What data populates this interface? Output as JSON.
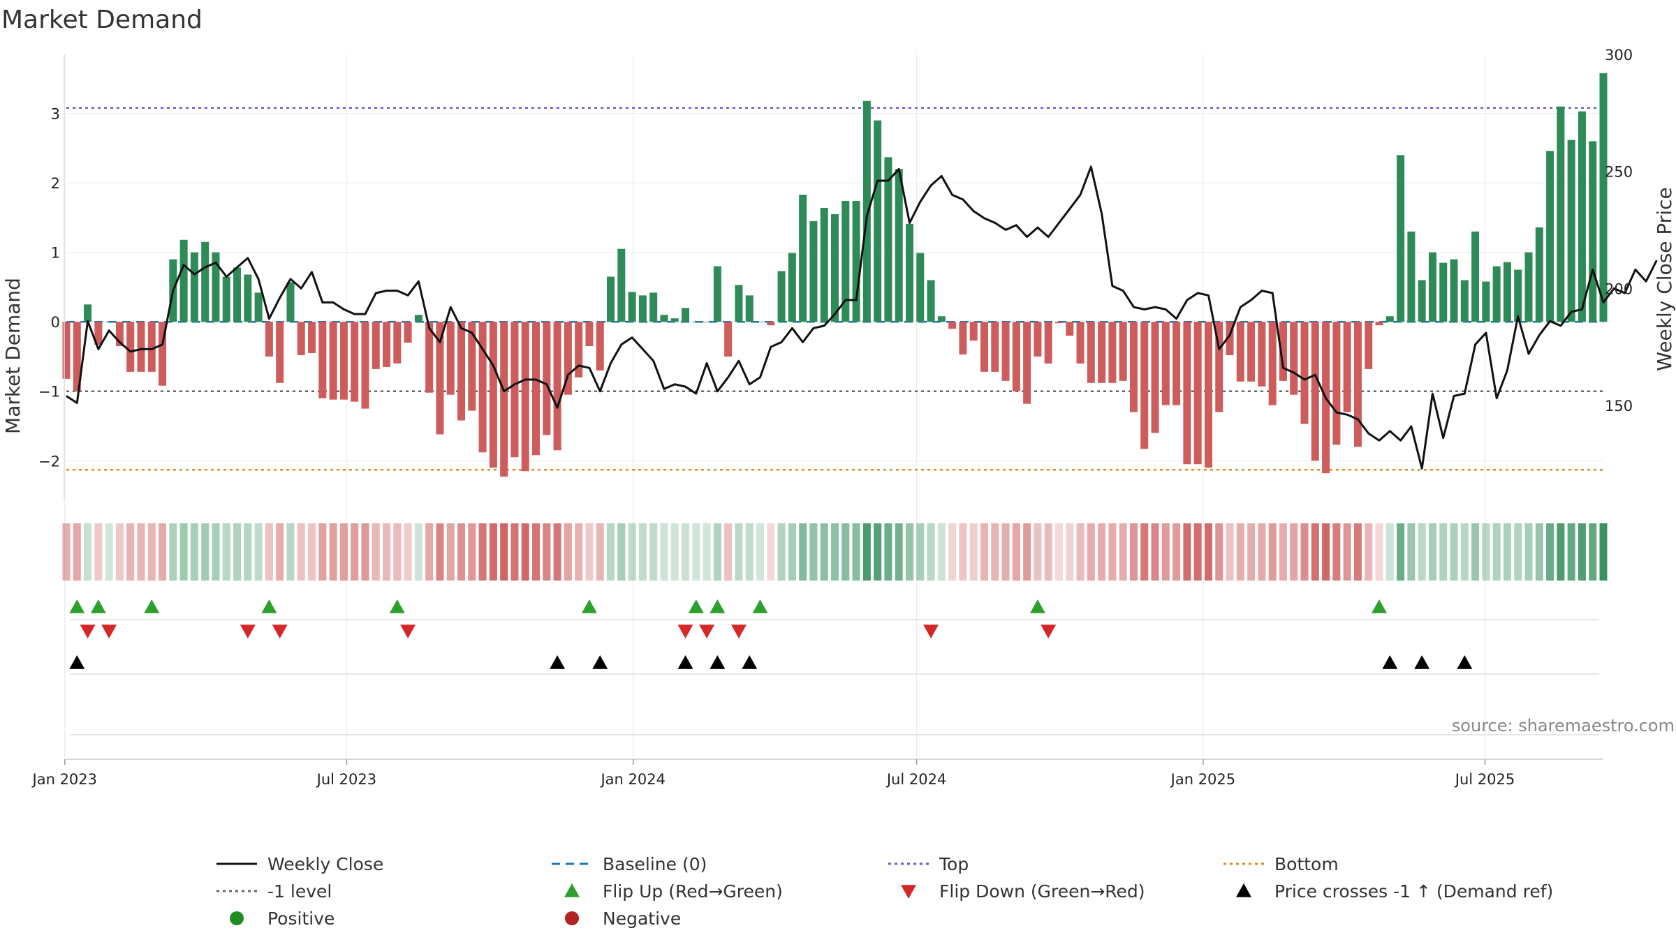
{
  "title": "Market Demand",
  "source": "source: sharemaestro.com",
  "chart_data": {
    "type": "bar",
    "title": "Market Demand",
    "ylabel_left": "Market Demand",
    "ylabel_right": "Weekly Close Price",
    "ylim_left": [
      -2.55,
      3.85
    ],
    "ylim_right": [
      110,
      300
    ],
    "yticks_left": [
      3,
      2,
      1,
      0,
      -1,
      -2
    ],
    "yticks_right": [
      300,
      250,
      200,
      150
    ],
    "x_start": "2023-01-02",
    "x_end": "2025-09-15",
    "x_ticks": [
      {
        "date": "2023-01-01",
        "label": "Jan 2023"
      },
      {
        "date": "2023-07-01",
        "label": "Jul 2023"
      },
      {
        "date": "2024-01-01",
        "label": "Jan 2024"
      },
      {
        "date": "2024-07-01",
        "label": "Jul 2024"
      },
      {
        "date": "2025-01-01",
        "label": "Jan 2025"
      },
      {
        "date": "2025-07-01",
        "label": "Jul 2025"
      }
    ],
    "reference_lines": {
      "top": 3.08,
      "minus_one": -1.0,
      "bottom": -2.13,
      "baseline": 0
    },
    "demand": [
      -0.82,
      -1.0,
      0.25,
      -0.33,
      0.0,
      -0.35,
      -0.72,
      -0.72,
      -0.72,
      -0.92,
      0.9,
      1.18,
      1.0,
      1.15,
      1.0,
      0.65,
      0.78,
      0.68,
      0.42,
      -0.5,
      -0.88,
      0.57,
      -0.48,
      -0.45,
      -1.1,
      -1.12,
      -1.12,
      -1.15,
      -1.25,
      -0.68,
      -0.65,
      -0.6,
      -0.3,
      0.1,
      -1.02,
      -1.62,
      -1.05,
      -1.42,
      -1.28,
      -1.88,
      -2.1,
      -2.23,
      -1.95,
      -2.15,
      -1.92,
      -1.63,
      -1.85,
      -1.05,
      -0.8,
      -0.35,
      -0.7,
      0.65,
      1.05,
      0.43,
      0.38,
      0.42,
      0.1,
      0.05,
      0.2,
      0.0,
      0.0,
      0.8,
      -0.5,
      0.53,
      0.38,
      0.0,
      -0.05,
      0.73,
      0.99,
      1.83,
      1.45,
      1.64,
      1.55,
      1.74,
      1.74,
      3.18,
      2.9,
      2.37,
      2.2,
      1.41,
      0.99,
      0.6,
      0.08,
      -0.1,
      -0.47,
      -0.27,
      -0.72,
      -0.72,
      -0.85,
      -1.0,
      -1.18,
      -0.5,
      -0.6,
      -0.02,
      -0.2,
      -0.6,
      -0.88,
      -0.88,
      -0.88,
      -0.85,
      -1.3,
      -1.83,
      -1.6,
      -1.2,
      -1.2,
      -2.05,
      -2.05,
      -2.1,
      -1.3,
      -0.48,
      -0.86,
      -0.86,
      -0.93,
      -1.2,
      -0.85,
      -1.05,
      -1.47,
      -2.0,
      -2.18,
      -1.77,
      -1.3,
      -1.8,
      -0.68,
      -0.05,
      0.08,
      2.4,
      1.3,
      0.6,
      1.0,
      0.85,
      0.9,
      0.6,
      1.3,
      0.58,
      0.8,
      0.86,
      0.75,
      1.0,
      1.36,
      2.46,
      3.1,
      2.62,
      3.03,
      2.6,
      3.58
    ],
    "price": [
      154,
      151,
      186,
      174,
      182,
      177,
      173,
      174,
      174,
      176,
      199,
      210,
      206,
      209,
      211,
      205,
      209,
      213,
      204,
      187,
      196,
      204,
      200,
      207,
      194,
      194,
      191,
      189,
      189,
      198,
      199,
      199,
      197,
      203,
      183,
      177,
      192,
      183,
      181,
      174,
      167,
      156,
      159,
      161,
      161,
      159,
      149,
      163,
      167,
      166,
      156,
      168,
      176,
      179,
      174,
      169,
      157,
      159,
      158,
      155,
      168,
      156,
      162,
      169,
      159,
      162,
      175,
      177,
      183,
      177,
      183,
      184,
      189,
      195,
      195,
      231,
      246,
      246,
      251,
      228,
      237,
      244,
      248,
      240,
      238,
      233,
      230,
      228,
      225,
      227,
      222,
      226,
      222,
      228,
      234,
      240,
      252,
      232,
      201,
      199,
      192,
      191,
      192,
      191,
      187,
      195,
      198,
      197,
      174,
      180,
      192,
      195,
      199,
      198,
      166,
      164,
      161,
      163,
      153,
      147,
      146,
      144,
      138,
      135,
      139,
      135,
      141,
      123,
      155,
      136,
      154,
      155,
      176,
      181,
      153,
      165,
      188,
      172,
      180,
      186,
      184,
      190,
      191,
      208,
      194,
      200,
      198,
      208,
      203,
      212
    ],
    "flip_up_weeks": [
      1,
      3,
      8,
      19,
      31,
      49,
      59,
      61,
      65,
      91,
      123
    ],
    "flip_down_weeks": [
      2,
      4,
      17,
      20,
      32,
      58,
      60,
      63,
      81,
      92
    ],
    "price_cross_weeks": [
      1,
      46,
      50,
      58,
      61,
      64,
      124,
      127,
      131
    ],
    "legend": [
      {
        "label": "Weekly Close"
      },
      {
        "label": "Baseline (0)"
      },
      {
        "label": "Top"
      },
      {
        "label": "Bottom"
      },
      {
        "label": "-1 level"
      },
      {
        "label": "Flip Up (Red→Green)"
      },
      {
        "label": "Flip Down (Green→Red)"
      },
      {
        "label": "Price crosses -1 ↑ (Demand ref)"
      },
      {
        "label": "Positive"
      },
      {
        "label": "Negative"
      }
    ]
  },
  "colors": {
    "positive": "#2e8b57",
    "negative": "#cd5c5c",
    "price": "#111111",
    "baseline": "#1f77b4",
    "top": "#6a5acd",
    "minus_one": "#666666",
    "bottom": "#d4901a",
    "flip_up": "#2ca02c",
    "flip_down": "#d62728",
    "cross": "#000000",
    "legend_positive_dot": "#228b22",
    "legend_negative_dot": "#b22222"
  }
}
